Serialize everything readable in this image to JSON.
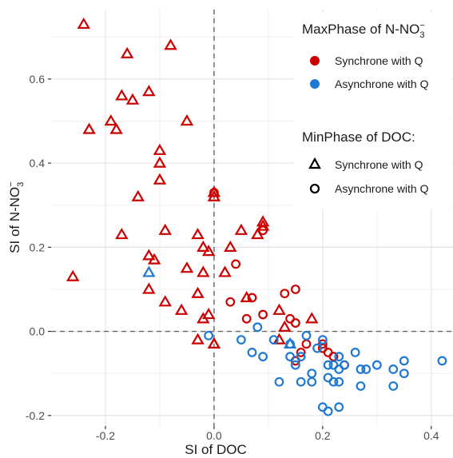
{
  "chart_data": {
    "type": "scatter",
    "xlabel": "SI of DOC",
    "ylabel": {
      "main": "SI of N-NO",
      "sub": "3",
      "sup": "−"
    },
    "xlim": [
      -0.3,
      0.44
    ],
    "ylim": [
      -0.225,
      0.765
    ],
    "x_ticks": [
      -0.2,
      0.0,
      0.2,
      0.4
    ],
    "x_tick_labels": [
      "-0.2",
      "0.0",
      "0.2",
      "0.4"
    ],
    "y_ticks": [
      -0.2,
      0.0,
      0.2,
      0.4,
      0.6
    ],
    "y_tick_labels": [
      "-0.2",
      "0.0",
      "0.2",
      "0.4",
      "0.6"
    ],
    "grid": true,
    "reference_lines": {
      "x": 0,
      "y": 0,
      "style": "dashed"
    },
    "legend_placement": "right",
    "legend": {
      "color_title": {
        "main": "MaxPhase of N-NO",
        "sub": "3",
        "sup": "−"
      },
      "color_items": [
        {
          "label": "Synchrone with Q",
          "color": "#cc0000"
        },
        {
          "label": "Asynchrone with Q",
          "color": "#1f78d1"
        }
      ],
      "shape_title": "MinPhase of DOC:",
      "shape_items": [
        {
          "label": "Synchrone with Q",
          "shape": "triangle"
        },
        {
          "label": "Asynchrone with Q",
          "shape": "circle"
        }
      ]
    },
    "colors": {
      "red": "#cc0000",
      "blue": "#1f78d1"
    },
    "series": [
      {
        "color": "red",
        "shape": "triangle",
        "points": [
          [
            -0.24,
            0.73
          ],
          [
            -0.16,
            0.66
          ],
          [
            -0.08,
            0.68
          ],
          [
            -0.17,
            0.56
          ],
          [
            -0.15,
            0.55
          ],
          [
            -0.12,
            0.57
          ],
          [
            -0.19,
            0.5
          ],
          [
            -0.18,
            0.48
          ],
          [
            -0.23,
            0.48
          ],
          [
            -0.05,
            0.5
          ],
          [
            -0.1,
            0.43
          ],
          [
            -0.1,
            0.4
          ],
          [
            -0.1,
            0.36
          ],
          [
            -0.14,
            0.32
          ],
          [
            -0.17,
            0.23
          ],
          [
            -0.09,
            0.24
          ],
          [
            -0.03,
            0.23
          ],
          [
            -0.12,
            0.18
          ],
          [
            -0.11,
            0.17
          ],
          [
            -0.02,
            0.2
          ],
          [
            -0.01,
            0.19
          ],
          [
            0.03,
            0.2
          ],
          [
            0.05,
            0.24
          ],
          [
            0.09,
            0.26
          ],
          [
            0.09,
            0.25
          ],
          [
            0.08,
            0.23
          ],
          [
            0.0,
            0.33
          ],
          [
            0.0,
            0.32
          ],
          [
            -0.05,
            0.15
          ],
          [
            -0.02,
            0.14
          ],
          [
            0.02,
            0.14
          ],
          [
            -0.26,
            0.13
          ],
          [
            -0.12,
            0.1
          ],
          [
            -0.03,
            0.09
          ],
          [
            -0.09,
            0.07
          ],
          [
            -0.06,
            0.05
          ],
          [
            -0.01,
            0.04
          ],
          [
            -0.02,
            0.03
          ],
          [
            0.06,
            0.08
          ],
          [
            0.12,
            0.05
          ],
          [
            0.13,
            0.01
          ],
          [
            0.18,
            0.03
          ],
          [
            -0.03,
            -0.02
          ],
          [
            0.0,
            -0.03
          ],
          [
            0.0,
            -0.03
          ],
          [
            0.12,
            -0.02
          ]
        ]
      },
      {
        "color": "blue",
        "shape": "triangle",
        "points": [
          [
            -0.12,
            0.14
          ],
          [
            0.14,
            -0.03
          ]
        ]
      },
      {
        "color": "red",
        "shape": "circle",
        "points": [
          [
            0.0,
            0.33
          ],
          [
            0.09,
            0.24
          ],
          [
            0.04,
            0.16
          ],
          [
            0.07,
            0.08
          ],
          [
            0.06,
            0.03
          ],
          [
            0.03,
            0.07
          ],
          [
            0.09,
            0.04
          ],
          [
            0.13,
            0.09
          ],
          [
            0.15,
            0.1
          ],
          [
            0.14,
            0.03
          ],
          [
            0.15,
            0.02
          ],
          [
            0.17,
            -0.03
          ],
          [
            0.16,
            -0.05
          ],
          [
            0.2,
            -0.03
          ],
          [
            0.2,
            -0.04
          ],
          [
            0.21,
            -0.05
          ],
          [
            0.22,
            -0.06
          ],
          [
            0.24,
            -0.08
          ],
          [
            0.15,
            -0.07
          ]
        ]
      },
      {
        "color": "blue",
        "shape": "circle",
        "points": [
          [
            -0.01,
            -0.01
          ],
          [
            0.05,
            -0.02
          ],
          [
            0.08,
            0.01
          ],
          [
            0.07,
            -0.05
          ],
          [
            0.09,
            -0.06
          ],
          [
            0.11,
            -0.02
          ],
          [
            0.14,
            -0.03
          ],
          [
            0.14,
            -0.06
          ],
          [
            0.15,
            -0.08
          ],
          [
            0.16,
            -0.06
          ],
          [
            0.17,
            -0.01
          ],
          [
            0.18,
            -0.1
          ],
          [
            0.19,
            -0.04
          ],
          [
            0.2,
            -0.02
          ],
          [
            0.21,
            -0.08
          ],
          [
            0.22,
            -0.08
          ],
          [
            0.23,
            -0.06
          ],
          [
            0.23,
            -0.09
          ],
          [
            0.24,
            -0.08
          ],
          [
            0.26,
            -0.05
          ],
          [
            0.27,
            -0.09
          ],
          [
            0.28,
            -0.09
          ],
          [
            0.3,
            -0.08
          ],
          [
            0.33,
            -0.09
          ],
          [
            0.35,
            -0.07
          ],
          [
            0.35,
            -0.1
          ],
          [
            0.42,
            -0.07
          ],
          [
            0.12,
            -0.12
          ],
          [
            0.16,
            -0.12
          ],
          [
            0.18,
            -0.12
          ],
          [
            0.21,
            -0.11
          ],
          [
            0.22,
            -0.12
          ],
          [
            0.23,
            -0.12
          ],
          [
            0.27,
            -0.13
          ],
          [
            0.33,
            -0.13
          ],
          [
            0.2,
            -0.18
          ],
          [
            0.21,
            -0.19
          ],
          [
            0.23,
            -0.18
          ]
        ]
      }
    ]
  }
}
